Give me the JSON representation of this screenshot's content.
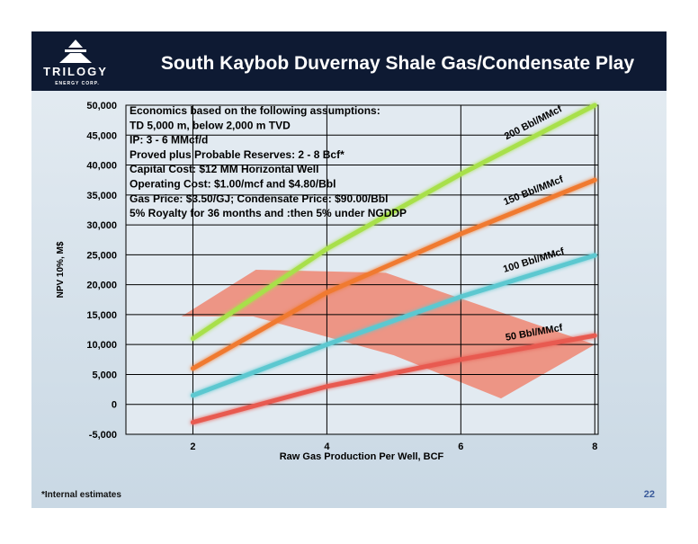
{
  "logo": {
    "name": "TRILOGY",
    "tagline": "ENERGY CORP."
  },
  "chart_data": {
    "type": "line",
    "title": "South Kaybob Duvernay Shale Gas/Condensate Play",
    "x_label": "Raw Gas Production Per Well, BCF",
    "y_label": "NPV 10%, M$",
    "annotation": [
      "Economics based on the following assumptions:",
      "TD 5,000 m, below 2,000 m TVD",
      "IP: 3 - 6 MMcf/d",
      "Proved plus Probable Reserves: 2 - 8 Bcf*",
      "Capital Cost: $12 MM Horizontal Well",
      "Operating Cost: $1.00/mcf and $4.80/Bbl",
      "Gas Price: $3.50/GJ; Condensate Price: $90.00/Bbl",
      "5% Royalty for 36 months and :then 5% under NGDDP"
    ],
    "x": [
      2,
      4,
      6,
      8
    ],
    "series": [
      {
        "name": "200 Bbl/MMcf",
        "color": "#a8e04a",
        "values": [
          11000,
          26000,
          38500,
          50000
        ]
      },
      {
        "name": "150 Bbl/MMcf",
        "color": "#f07a30",
        "values": [
          6000,
          18700,
          28500,
          37500
        ]
      },
      {
        "name": "100 Bbl/MMcf",
        "color": "#5cc8d0",
        "values": [
          1500,
          10000,
          18000,
          24900
        ]
      },
      {
        "name": "50 Bbl/MMcf",
        "color": "#e85a50",
        "values": [
          -3000,
          3000,
          7500,
          11500
        ]
      }
    ],
    "shaded_region": {
      "color": "#f0806a",
      "x": [
        1.83,
        2.94,
        4.88,
        8.0,
        6.6,
        5.0,
        2.9
      ],
      "values": [
        14700,
        22500,
        22000,
        10000,
        1000,
        8200,
        14700
      ]
    },
    "xlim": [
      1,
      8.05
    ],
    "xticks": [
      2,
      4,
      6,
      8
    ],
    "ylim": [
      -5000,
      50000
    ],
    "yticks": [
      {
        "value": -5000,
        "label": "-5,000"
      },
      0,
      {
        "value": 5000,
        "label": "5,000"
      },
      {
        "value": 10000,
        "label": "10,000"
      },
      {
        "value": 15000,
        "label": "15,000"
      },
      {
        "value": 20000,
        "label": "20,000"
      },
      {
        "value": 25000,
        "label": "25,000"
      },
      {
        "value": 30000,
        "label": "30,000"
      },
      {
        "value": 35000,
        "label": "35,000"
      },
      {
        "value": 40000,
        "label": "40,000"
      },
      {
        "value": 45000,
        "label": "45,000"
      },
      {
        "value": 50000,
        "label": "50,000"
      }
    ],
    "grid": true,
    "footnote": "*Internal estimates",
    "page_number": "22"
  }
}
